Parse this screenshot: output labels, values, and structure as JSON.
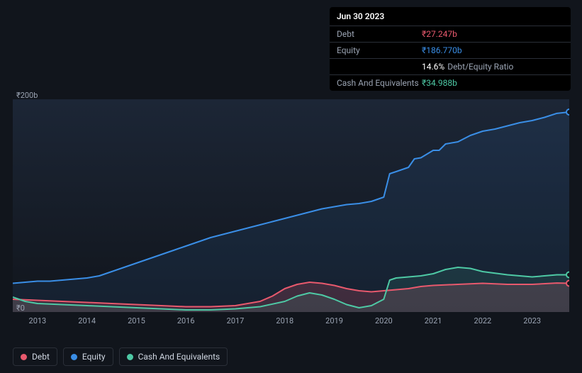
{
  "tooltip": {
    "date": "Jun 30 2023",
    "rows": [
      {
        "label": "Debt",
        "value": "₹27.247b",
        "cls": "debt"
      },
      {
        "label": "Equity",
        "value": "₹186.770b",
        "cls": "equity"
      },
      {
        "label": "",
        "value": "14.6%",
        "suffix": "Debt/Equity Ratio",
        "cls": ""
      },
      {
        "label": "Cash And Equivalents",
        "value": "₹34.988b",
        "cls": "cash"
      }
    ]
  },
  "chart": {
    "type": "area-line",
    "background_gradient_top": "#1c2636",
    "background_gradient_bottom": "#11151c",
    "ylim": [
      0,
      200
    ],
    "yticks": [
      {
        "v": 0,
        "label": "₹0"
      },
      {
        "v": 200,
        "label": "₹200b"
      }
    ],
    "xlim": [
      2012.5,
      2023.75
    ],
    "xticks": [
      {
        "v": 2013,
        "label": "2013"
      },
      {
        "v": 2014,
        "label": "2014"
      },
      {
        "v": 2015,
        "label": "2015"
      },
      {
        "v": 2016,
        "label": "2016"
      },
      {
        "v": 2017,
        "label": "2017"
      },
      {
        "v": 2018,
        "label": "2018"
      },
      {
        "v": 2019,
        "label": "2019"
      },
      {
        "v": 2020,
        "label": "2020"
      },
      {
        "v": 2021,
        "label": "2021"
      },
      {
        "v": 2022,
        "label": "2022"
      },
      {
        "v": 2023,
        "label": "2023"
      }
    ],
    "series": [
      {
        "name": "Equity",
        "color": "#3a8ee6",
        "fill": "rgba(58,142,230,0.10)",
        "line_width": 2,
        "end_marker": true,
        "points": [
          [
            2012.5,
            27
          ],
          [
            2012.75,
            28
          ],
          [
            2013,
            29
          ],
          [
            2013.25,
            29
          ],
          [
            2013.5,
            30
          ],
          [
            2013.75,
            31
          ],
          [
            2014,
            32
          ],
          [
            2014.25,
            34
          ],
          [
            2014.5,
            38
          ],
          [
            2014.75,
            42
          ],
          [
            2015,
            46
          ],
          [
            2015.25,
            50
          ],
          [
            2015.5,
            54
          ],
          [
            2015.75,
            58
          ],
          [
            2016,
            62
          ],
          [
            2016.25,
            66
          ],
          [
            2016.5,
            70
          ],
          [
            2016.75,
            73
          ],
          [
            2017,
            76
          ],
          [
            2017.25,
            79
          ],
          [
            2017.5,
            82
          ],
          [
            2017.75,
            85
          ],
          [
            2018,
            88
          ],
          [
            2018.25,
            91
          ],
          [
            2018.5,
            94
          ],
          [
            2018.75,
            97
          ],
          [
            2019,
            99
          ],
          [
            2019.25,
            101
          ],
          [
            2019.5,
            102
          ],
          [
            2019.75,
            104
          ],
          [
            2020,
            108
          ],
          [
            2020.12,
            130
          ],
          [
            2020.25,
            132
          ],
          [
            2020.5,
            136
          ],
          [
            2020.62,
            144
          ],
          [
            2020.75,
            145
          ],
          [
            2021,
            152
          ],
          [
            2021.12,
            152
          ],
          [
            2021.25,
            158
          ],
          [
            2021.5,
            160
          ],
          [
            2021.75,
            166
          ],
          [
            2022,
            170
          ],
          [
            2022.25,
            172
          ],
          [
            2022.5,
            175
          ],
          [
            2022.75,
            178
          ],
          [
            2023,
            180
          ],
          [
            2023.25,
            183
          ],
          [
            2023.5,
            186.77
          ],
          [
            2023.75,
            188
          ]
        ]
      },
      {
        "name": "Debt",
        "color": "#e8596d",
        "fill": "rgba(232,89,109,0.20)",
        "line_width": 2,
        "end_marker": true,
        "points": [
          [
            2012.5,
            12
          ],
          [
            2013,
            11
          ],
          [
            2013.5,
            10
          ],
          [
            2014,
            9
          ],
          [
            2014.5,
            8
          ],
          [
            2015,
            7
          ],
          [
            2015.5,
            6
          ],
          [
            2016,
            5
          ],
          [
            2016.5,
            5
          ],
          [
            2017,
            6
          ],
          [
            2017.5,
            10
          ],
          [
            2017.75,
            15
          ],
          [
            2018,
            22
          ],
          [
            2018.25,
            26
          ],
          [
            2018.5,
            28
          ],
          [
            2018.75,
            27
          ],
          [
            2019,
            25
          ],
          [
            2019.25,
            22
          ],
          [
            2019.5,
            20
          ],
          [
            2019.75,
            19
          ],
          [
            2020,
            20
          ],
          [
            2020.25,
            21
          ],
          [
            2020.5,
            22
          ],
          [
            2020.75,
            24
          ],
          [
            2021,
            25
          ],
          [
            2021.5,
            26
          ],
          [
            2022,
            27
          ],
          [
            2022.5,
            26
          ],
          [
            2023,
            26
          ],
          [
            2023.5,
            27.247
          ],
          [
            2023.75,
            27
          ]
        ]
      },
      {
        "name": "Cash And Equivalents",
        "color": "#4ec9a5",
        "fill": "rgba(78,201,165,0.12)",
        "line_width": 2,
        "end_marker": true,
        "points": [
          [
            2012.5,
            14
          ],
          [
            2012.75,
            10
          ],
          [
            2013,
            8
          ],
          [
            2013.5,
            7
          ],
          [
            2014,
            6
          ],
          [
            2014.5,
            5
          ],
          [
            2015,
            4
          ],
          [
            2015.5,
            3
          ],
          [
            2016,
            2
          ],
          [
            2016.5,
            2
          ],
          [
            2017,
            3
          ],
          [
            2017.5,
            5
          ],
          [
            2018,
            10
          ],
          [
            2018.25,
            15
          ],
          [
            2018.5,
            18
          ],
          [
            2018.75,
            16
          ],
          [
            2019,
            12
          ],
          [
            2019.25,
            7
          ],
          [
            2019.5,
            4
          ],
          [
            2019.75,
            6
          ],
          [
            2020,
            12
          ],
          [
            2020.12,
            30
          ],
          [
            2020.25,
            32
          ],
          [
            2020.5,
            33
          ],
          [
            2020.75,
            34
          ],
          [
            2021,
            36
          ],
          [
            2021.25,
            40
          ],
          [
            2021.5,
            42
          ],
          [
            2021.75,
            41
          ],
          [
            2022,
            38
          ],
          [
            2022.5,
            35
          ],
          [
            2023,
            33
          ],
          [
            2023.5,
            34.988
          ],
          [
            2023.75,
            35
          ]
        ]
      }
    ]
  },
  "legend": [
    {
      "label": "Debt",
      "color": "#e8596d"
    },
    {
      "label": "Equity",
      "color": "#3a8ee6"
    },
    {
      "label": "Cash And Equivalents",
      "color": "#4ec9a5"
    }
  ]
}
